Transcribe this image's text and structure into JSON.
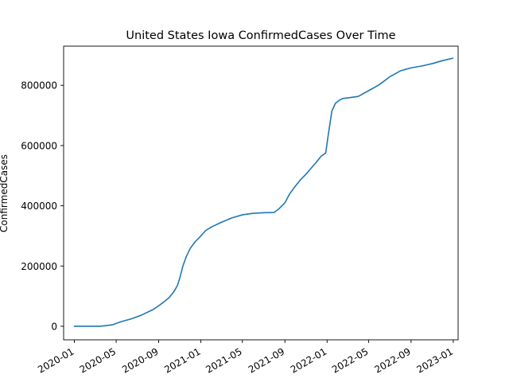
{
  "chart_data": {
    "type": "line",
    "title": "United States Iowa ConfirmedCases Over Time",
    "xlabel": "",
    "ylabel": "ConfirmedCases",
    "xlim": [
      "2019-12-01",
      "2023-01-15"
    ],
    "ylim": [
      -45000,
      930000
    ],
    "x_ticks": [
      "2020-01",
      "2020-05",
      "2020-09",
      "2021-01",
      "2021-05",
      "2021-09",
      "2022-01",
      "2022-05",
      "2022-09",
      "2023-01"
    ],
    "y_ticks": [
      0,
      200000,
      400000,
      600000,
      800000
    ],
    "y_tick_labels": [
      "0",
      "200000",
      "400000",
      "600000",
      "800000"
    ],
    "grid": false,
    "legend": "none",
    "series": [
      {
        "color": "#1f77b4",
        "x": [
          "2020-01-01",
          "2020-03-15",
          "2020-04-01",
          "2020-04-20",
          "2020-05-15",
          "2020-06-15",
          "2020-07-15",
          "2020-08-15",
          "2020-09-01",
          "2020-09-15",
          "2020-10-01",
          "2020-10-15",
          "2020-10-25",
          "2020-11-01",
          "2020-11-10",
          "2020-11-20",
          "2020-12-01",
          "2020-12-15",
          "2021-01-01",
          "2021-01-15",
          "2021-02-01",
          "2021-03-01",
          "2021-04-01",
          "2021-05-01",
          "2021-06-01",
          "2021-07-01",
          "2021-08-01",
          "2021-08-15",
          "2021-09-01",
          "2021-09-15",
          "2021-10-01",
          "2021-10-15",
          "2021-11-01",
          "2021-12-01",
          "2021-12-15",
          "2021-12-28",
          "2022-01-05",
          "2022-01-15",
          "2022-01-25",
          "2022-02-05",
          "2022-02-15",
          "2022-03-01",
          "2022-04-01",
          "2022-05-01",
          "2022-06-01",
          "2022-07-01",
          "2022-08-01",
          "2022-09-01",
          "2022-10-01",
          "2022-11-01",
          "2022-12-01",
          "2022-12-31"
        ],
        "y": [
          0,
          0,
          2000,
          5000,
          15000,
          25000,
          38000,
          55000,
          68000,
          80000,
          95000,
          115000,
          135000,
          160000,
          200000,
          232000,
          258000,
          280000,
          300000,
          318000,
          330000,
          345000,
          360000,
          370000,
          375000,
          377000,
          378000,
          390000,
          410000,
          440000,
          465000,
          485000,
          505000,
          545000,
          565000,
          575000,
          640000,
          715000,
          740000,
          750000,
          756000,
          758000,
          763000,
          782000,
          802000,
          828000,
          848000,
          858000,
          864000,
          872000,
          882000,
          890000
        ]
      }
    ]
  }
}
